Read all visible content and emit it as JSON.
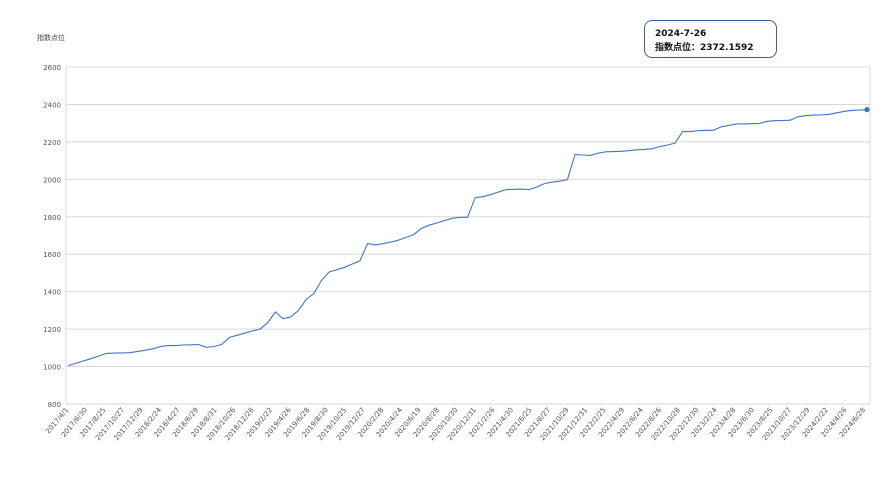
{
  "chart_data": {
    "type": "line",
    "ylabel": "指数点位",
    "ylim": [
      800,
      2600
    ],
    "yticks": [
      800,
      1000,
      1200,
      1400,
      1600,
      1800,
      2000,
      2200,
      2400,
      2600
    ],
    "series_color": "#4472c4",
    "grid": true,
    "x_tick_labels": [
      "2017/4/1",
      "2017/6/30",
      "2017/8/25",
      "2017/10/27",
      "2017/12/29",
      "2018/2/24",
      "2018/4/27",
      "2018/6/29",
      "2018/8/31",
      "2018/10/26",
      "2018/12/28",
      "2019/2/22",
      "2019/4/26",
      "2019/6/28",
      "2019/8/30",
      "2019/10/25",
      "2019/12/27",
      "2020/2/28",
      "2020/4/24",
      "2020/6/19",
      "2020/8/28",
      "2020/10/30",
      "2020/12/31",
      "2021/2/26",
      "2021/4/30",
      "2021/6/25",
      "2021/8/27",
      "2021/10/29",
      "2021/12/31",
      "2022/2/25",
      "2022/4/29",
      "2022/6/24",
      "2022/8/26",
      "2022/10/28",
      "2022/12/30",
      "2023/2/24",
      "2023/4/28",
      "2023/6/30",
      "2023/8/25",
      "2023/10/27",
      "2023/12/29",
      "2024/2/22",
      "2024/4/26",
      "2024/6/28"
    ],
    "values": [
      1005,
      1017,
      1030,
      1042,
      1056,
      1070,
      1072,
      1073,
      1074,
      1080,
      1087,
      1095,
      1106,
      1113,
      1112,
      1115,
      1116,
      1118,
      1103,
      1107,
      1118,
      1155,
      1167,
      1178,
      1190,
      1200,
      1235,
      1292,
      1255,
      1265,
      1300,
      1358,
      1390,
      1460,
      1505,
      1518,
      1530,
      1548,
      1565,
      1657,
      1650,
      1656,
      1665,
      1675,
      1690,
      1705,
      1738,
      1755,
      1767,
      1780,
      1792,
      1797,
      1797,
      1902,
      1907,
      1918,
      1932,
      1945,
      1947,
      1948,
      1945,
      1958,
      1977,
      1985,
      1990,
      1998,
      2133,
      2130,
      2128,
      2140,
      2147,
      2148,
      2150,
      2153,
      2158,
      2160,
      2163,
      2175,
      2183,
      2193,
      2255,
      2255,
      2260,
      2262,
      2262,
      2280,
      2288,
      2296,
      2296,
      2297,
      2299,
      2310,
      2313,
      2314,
      2316,
      2334,
      2340,
      2343,
      2344,
      2347,
      2355,
      2363,
      2368,
      2370,
      2372.1592
    ],
    "last_point": {
      "date": "2024-7-26",
      "value": 2372.1592
    }
  },
  "tooltip": {
    "date": "2024-7-26",
    "label": "指数点位：2372.1592"
  }
}
